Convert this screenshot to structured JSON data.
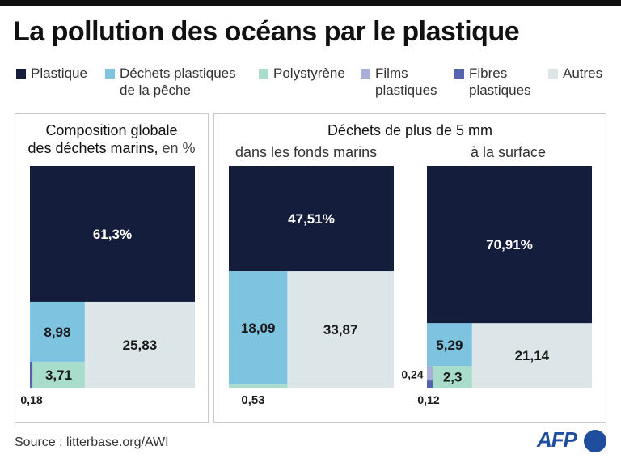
{
  "title": "La pollution des océans par le plastique",
  "legend": [
    {
      "label": "Plastique",
      "color": "#141e3c"
    },
    {
      "label": "Déchets plastiques\nde la pêche",
      "color": "#7ec4e0"
    },
    {
      "label": "Polystyrène",
      "color": "#a8dccb"
    },
    {
      "label": "Films\nplastiques",
      "color": "#a9aed8"
    },
    {
      "label": "Fibres\nplastiques",
      "color": "#5563b0"
    },
    {
      "label": "Autres",
      "color": "#dce6e8"
    }
  ],
  "panels": {
    "left_title": "Composition globale",
    "left_title2": "des déchets marins,",
    "left_unit": " en %",
    "right_title": "Déchets de plus de 5 mm",
    "sub_seabed": "dans les fonds marins",
    "sub_surface": "à la surface"
  },
  "chart_data": [
    {
      "type": "treemap",
      "title": "Composition globale des déchets marins, en %",
      "series": [
        {
          "name": "Plastique",
          "value": 61.3,
          "label": "61,3%"
        },
        {
          "name": "Déchets plastiques de la pêche",
          "value": 8.98,
          "label": "8,98"
        },
        {
          "name": "Polystyrène",
          "value": 3.71,
          "label": "3,71"
        },
        {
          "name": "Fibres plastiques",
          "value": 0.18,
          "label": "0,18"
        },
        {
          "name": "Autres",
          "value": 25.83,
          "label": "25,83"
        }
      ]
    },
    {
      "type": "treemap",
      "title": "dans les fonds marins",
      "series": [
        {
          "name": "Plastique",
          "value": 47.51,
          "label": "47,51%"
        },
        {
          "name": "Déchets plastiques de la pêche",
          "value": 18.09,
          "label": "18,09"
        },
        {
          "name": "Polystyrène",
          "value": 0.53,
          "label": "0,53"
        },
        {
          "name": "Autres",
          "value": 33.87,
          "label": "33,87"
        }
      ]
    },
    {
      "type": "treemap",
      "title": "à la surface",
      "series": [
        {
          "name": "Plastique",
          "value": 70.91,
          "label": "70,91%"
        },
        {
          "name": "Déchets plastiques de la pêche",
          "value": 5.29,
          "label": "5,29"
        },
        {
          "name": "Polystyrène",
          "value": 2.3,
          "label": "2,3"
        },
        {
          "name": "Films plastiques",
          "value": 0.24,
          "label": "0,24"
        },
        {
          "name": "Fibres plastiques",
          "value": 0.12,
          "label": "0,12"
        },
        {
          "name": "Autres",
          "value": 21.14,
          "label": "21,14"
        }
      ]
    }
  ],
  "source": "Source : litterbase.org/AWI",
  "logo": "AFP"
}
